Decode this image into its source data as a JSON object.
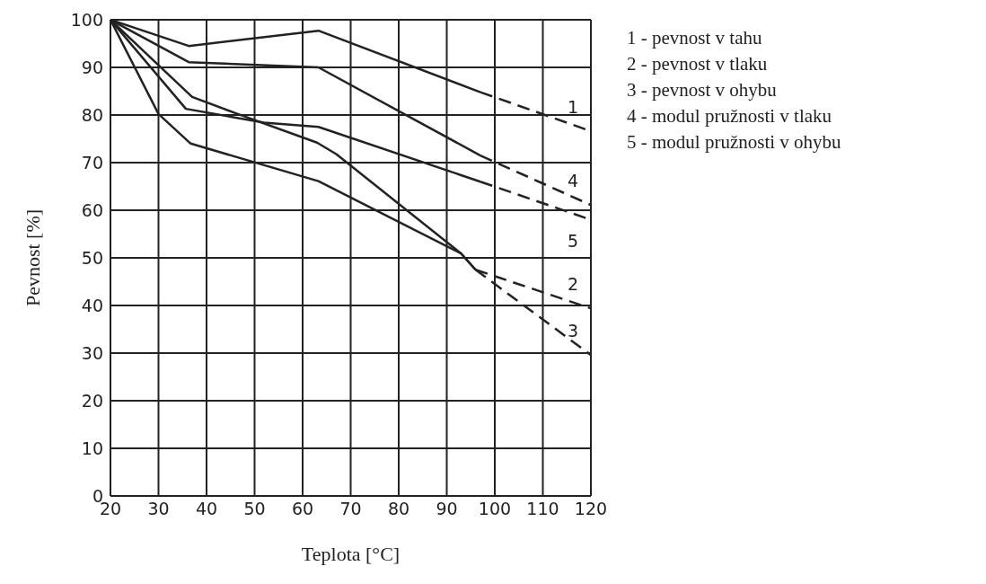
{
  "chart_data": {
    "type": "line",
    "xlabel": "Teplota   [°C]",
    "ylabel": "Pevnost   [%]",
    "xlim": [
      20,
      120
    ],
    "xticks": [
      20,
      30,
      40,
      50,
      60,
      70,
      80,
      90,
      100,
      110,
      120
    ],
    "ylim": [
      0,
      100
    ],
    "yticks": [
      0,
      10,
      20,
      30,
      40,
      50,
      60,
      70,
      80,
      90,
      100
    ],
    "grid": true,
    "marker": "none",
    "series": [
      {
        "color": "#222222",
        "line_style": "solid",
        "x": [
          20,
          36.3,
          63.3,
          97
        ],
        "values": [
          100,
          94.5,
          97.7,
          84.8
        ]
      },
      {
        "name": "1",
        "color": "#222222",
        "line_style": "dashed",
        "x": [
          97,
          120
        ],
        "values": [
          84.8,
          76.6
        ]
      },
      {
        "color": "#222222",
        "line_style": "solid",
        "x": [
          20,
          37,
          46,
          63,
          67,
          93,
          96
        ],
        "values": [
          100,
          83.8,
          80.4,
          74.2,
          71.8,
          50.9,
          47.5
        ]
      },
      {
        "name": "2",
        "color": "#222222",
        "line_style": "dashed",
        "x": [
          96,
          120
        ],
        "values": [
          47.5,
          39.4
        ]
      },
      {
        "color": "#222222",
        "line_style": "solid",
        "x": [
          20,
          30,
          36.7,
          63.3,
          93,
          96
        ],
        "values": [
          100,
          80.2,
          74,
          66.1,
          50.9,
          47.5
        ]
      },
      {
        "name": "3",
        "color": "#222222",
        "line_style": "dashed",
        "x": [
          96,
          120
        ],
        "values": [
          47.5,
          29.6
        ]
      },
      {
        "color": "#222222",
        "line_style": "solid",
        "x": [
          20,
          36.3,
          63.3,
          97
        ],
        "values": [
          100,
          91.1,
          90,
          71.5
        ]
      },
      {
        "name": "4",
        "color": "#222222",
        "line_style": "dashed",
        "x": [
          97,
          120
        ],
        "values": [
          71.5,
          61.1
        ]
      },
      {
        "color": "#222222",
        "line_style": "solid",
        "x": [
          20,
          35.7,
          52,
          63.3,
          97
        ],
        "values": [
          100,
          81.3,
          78.4,
          77.5,
          66
        ]
      },
      {
        "name": "5",
        "color": "#222222",
        "line_style": "dashed",
        "x": [
          97,
          120
        ],
        "values": [
          66,
          58
        ]
      }
    ],
    "annotations": [
      "1 - pevnost v tahu",
      "2 - pevnost v tlaku",
      "3 - pevnost v ohybu",
      "4 - modul pružnosti v tlaku",
      "5 - modul pružnosti v ohybu"
    ]
  }
}
